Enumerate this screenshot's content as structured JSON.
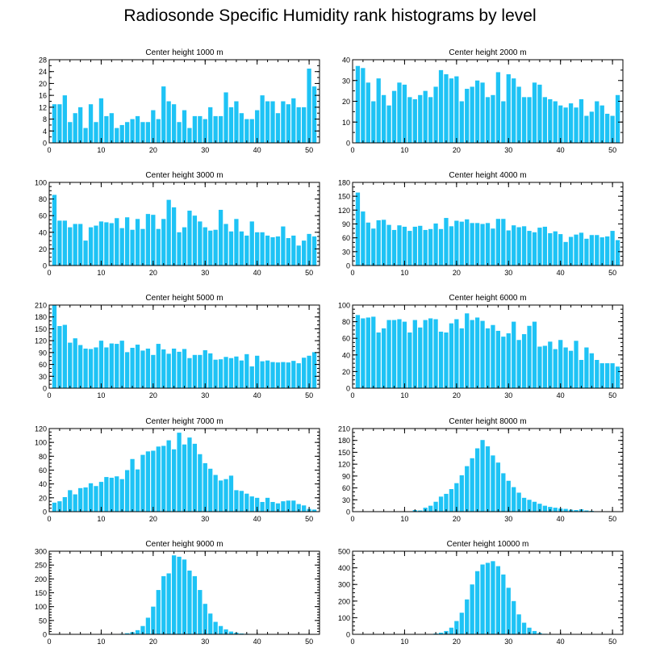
{
  "title": "Radiosonde Specific Humidity rank histograms by level",
  "colors": {
    "bar": "#1EC3F5",
    "axis": "#000000",
    "background": "#ffffff"
  },
  "chart_data": [
    {
      "type": "bar",
      "title": "Center height 1000 m",
      "x": [
        1,
        2,
        3,
        4,
        5,
        6,
        7,
        8,
        9,
        10,
        11,
        12,
        13,
        14,
        15,
        16,
        17,
        18,
        19,
        20,
        21,
        22,
        23,
        24,
        25,
        26,
        27,
        28,
        29,
        30,
        31,
        32,
        33,
        34,
        35,
        36,
        37,
        38,
        39,
        40,
        41,
        42,
        43,
        44,
        45,
        46,
        47,
        48,
        49,
        50,
        51
      ],
      "values": [
        13,
        13,
        16,
        7,
        10,
        12,
        5,
        13,
        7,
        15,
        9,
        10,
        5,
        6,
        7,
        8,
        9,
        7,
        7,
        11,
        8,
        19,
        14,
        13,
        7,
        11,
        5,
        9,
        9,
        8,
        12,
        9,
        9,
        17,
        12,
        14,
        10,
        8,
        8,
        11,
        16,
        14,
        14,
        10,
        14,
        13,
        15,
        12,
        12,
        25,
        19
      ],
      "xlim": [
        0,
        52
      ],
      "ylim": [
        0,
        28
      ],
      "xticks": [
        0,
        10,
        20,
        30,
        40,
        50
      ],
      "yticks": [
        0,
        4,
        8,
        12,
        16,
        20,
        24,
        28
      ],
      "yminor": 2
    },
    {
      "type": "bar",
      "title": "Center height 2000 m",
      "x": [
        1,
        2,
        3,
        4,
        5,
        6,
        7,
        8,
        9,
        10,
        11,
        12,
        13,
        14,
        15,
        16,
        17,
        18,
        19,
        20,
        21,
        22,
        23,
        24,
        25,
        26,
        27,
        28,
        29,
        30,
        31,
        32,
        33,
        34,
        35,
        36,
        37,
        38,
        39,
        40,
        41,
        42,
        43,
        44,
        45,
        46,
        47,
        48,
        49,
        50,
        51
      ],
      "values": [
        37,
        36,
        29,
        20,
        31,
        23,
        18,
        25,
        29,
        28,
        22,
        21,
        23,
        25,
        22,
        27,
        35,
        33,
        31,
        32,
        20,
        26,
        27,
        30,
        29,
        22,
        23,
        34,
        20,
        33,
        31,
        27,
        22,
        22,
        29,
        28,
        22,
        21,
        20,
        18,
        17,
        19,
        17,
        21,
        13,
        15,
        20,
        18,
        14,
        13,
        23
      ],
      "xlim": [
        0,
        52
      ],
      "ylim": [
        0,
        40
      ],
      "xticks": [
        0,
        10,
        20,
        30,
        40,
        50
      ],
      "yticks": [
        0,
        10,
        20,
        30,
        40
      ],
      "yminor": 2
    },
    {
      "type": "bar",
      "title": "Center height 3000 m",
      "x": [
        1,
        2,
        3,
        4,
        5,
        6,
        7,
        8,
        9,
        10,
        11,
        12,
        13,
        14,
        15,
        16,
        17,
        18,
        19,
        20,
        21,
        22,
        23,
        24,
        25,
        26,
        27,
        28,
        29,
        30,
        31,
        32,
        33,
        34,
        35,
        36,
        37,
        38,
        39,
        40,
        41,
        42,
        43,
        44,
        45,
        46,
        47,
        48,
        49,
        50,
        51
      ],
      "values": [
        85,
        54,
        54,
        46,
        50,
        50,
        30,
        46,
        48,
        53,
        52,
        51,
        57,
        45,
        58,
        43,
        56,
        44,
        62,
        61,
        44,
        56,
        79,
        70,
        40,
        46,
        66,
        60,
        53,
        46,
        42,
        43,
        67,
        50,
        41,
        56,
        41,
        36,
        53,
        40,
        40,
        36,
        34,
        35,
        47,
        33,
        36,
        24,
        30,
        38,
        35
      ],
      "xlim": [
        0,
        52
      ],
      "ylim": [
        0,
        100
      ],
      "xticks": [
        0,
        10,
        20,
        30,
        40,
        50
      ],
      "yticks": [
        0,
        20,
        40,
        60,
        80,
        100
      ],
      "yminor": 4
    },
    {
      "type": "bar",
      "title": "Center height 4000 m",
      "x": [
        1,
        2,
        3,
        4,
        5,
        6,
        7,
        8,
        9,
        10,
        11,
        12,
        13,
        14,
        15,
        16,
        17,
        18,
        19,
        20,
        21,
        22,
        23,
        24,
        25,
        26,
        27,
        28,
        29,
        30,
        31,
        32,
        33,
        34,
        35,
        36,
        37,
        38,
        39,
        40,
        41,
        42,
        43,
        44,
        45,
        46,
        47,
        48,
        49,
        50,
        51
      ],
      "values": [
        158,
        117,
        93,
        80,
        98,
        99,
        88,
        77,
        87,
        84,
        75,
        84,
        86,
        77,
        79,
        91,
        79,
        103,
        85,
        97,
        95,
        100,
        92,
        92,
        90,
        92,
        80,
        101,
        101,
        76,
        87,
        83,
        85,
        75,
        72,
        82,
        84,
        70,
        74,
        68,
        51,
        62,
        67,
        71,
        58,
        66,
        66,
        61,
        63,
        75,
        55
      ],
      "xlim": [
        0,
        52
      ],
      "ylim": [
        0,
        180
      ],
      "xticks": [
        0,
        10,
        20,
        30,
        40,
        50
      ],
      "yticks": [
        0,
        30,
        60,
        90,
        120,
        150,
        180
      ],
      "yminor": 3
    },
    {
      "type": "bar",
      "title": "Center height 5000 m",
      "x": [
        1,
        2,
        3,
        4,
        5,
        6,
        7,
        8,
        9,
        10,
        11,
        12,
        13,
        14,
        15,
        16,
        17,
        18,
        19,
        20,
        21,
        22,
        23,
        24,
        25,
        26,
        27,
        28,
        29,
        30,
        31,
        32,
        33,
        34,
        35,
        36,
        37,
        38,
        39,
        40,
        41,
        42,
        43,
        44,
        45,
        46,
        47,
        48,
        49,
        50,
        51
      ],
      "values": [
        210,
        157,
        160,
        115,
        126,
        109,
        100,
        99,
        103,
        120,
        103,
        113,
        112,
        120,
        91,
        102,
        110,
        95,
        100,
        84,
        112,
        98,
        87,
        100,
        92,
        99,
        76,
        84,
        84,
        96,
        88,
        72,
        73,
        79,
        76,
        80,
        70,
        86,
        55,
        82,
        68,
        70,
        66,
        65,
        66,
        65,
        69,
        63,
        77,
        82,
        91
      ],
      "xlim": [
        0,
        52
      ],
      "ylim": [
        0,
        210
      ],
      "xticks": [
        0,
        10,
        20,
        30,
        40,
        50
      ],
      "yticks": [
        0,
        30,
        60,
        90,
        120,
        150,
        180,
        210
      ],
      "yminor": 3
    },
    {
      "type": "bar",
      "title": "Center height 6000 m",
      "x": [
        1,
        2,
        3,
        4,
        5,
        6,
        7,
        8,
        9,
        10,
        11,
        12,
        13,
        14,
        15,
        16,
        17,
        18,
        19,
        20,
        21,
        22,
        23,
        24,
        25,
        26,
        27,
        28,
        29,
        30,
        31,
        32,
        33,
        34,
        35,
        36,
        37,
        38,
        39,
        40,
        41,
        42,
        43,
        44,
        45,
        46,
        47,
        48,
        49,
        50,
        51
      ],
      "values": [
        88,
        84,
        85,
        86,
        67,
        72,
        82,
        82,
        83,
        80,
        67,
        82,
        73,
        82,
        84,
        83,
        68,
        67,
        78,
        83,
        72,
        90,
        82,
        85,
        81,
        72,
        76,
        69,
        62,
        66,
        80,
        58,
        65,
        75,
        80,
        50,
        51,
        56,
        47,
        58,
        49,
        45,
        57,
        34,
        49,
        42,
        34,
        30,
        30,
        30,
        26
      ],
      "xlim": [
        0,
        52
      ],
      "ylim": [
        0,
        100
      ],
      "xticks": [
        0,
        10,
        20,
        30,
        40,
        50
      ],
      "yticks": [
        0,
        20,
        40,
        60,
        80,
        100
      ],
      "yminor": 4
    },
    {
      "type": "bar",
      "title": "Center height 7000 m",
      "x": [
        1,
        2,
        3,
        4,
        5,
        6,
        7,
        8,
        9,
        10,
        11,
        12,
        13,
        14,
        15,
        16,
        17,
        18,
        19,
        20,
        21,
        22,
        23,
        24,
        25,
        26,
        27,
        28,
        29,
        30,
        31,
        32,
        33,
        34,
        35,
        36,
        37,
        38,
        39,
        40,
        41,
        42,
        43,
        44,
        45,
        46,
        47,
        48,
        49,
        50,
        51
      ],
      "values": [
        13,
        15,
        21,
        31,
        25,
        34,
        35,
        41,
        37,
        43,
        50,
        49,
        51,
        47,
        60,
        76,
        61,
        82,
        87,
        88,
        94,
        95,
        103,
        90,
        114,
        97,
        107,
        98,
        83,
        70,
        62,
        53,
        45,
        47,
        52,
        31,
        30,
        26,
        22,
        20,
        14,
        20,
        14,
        12,
        15,
        16,
        16,
        11,
        9,
        4,
        3
      ],
      "xlim": [
        0,
        52
      ],
      "ylim": [
        0,
        120
      ],
      "xticks": [
        0,
        10,
        20,
        30,
        40,
        50
      ],
      "yticks": [
        0,
        20,
        40,
        60,
        80,
        100,
        120
      ],
      "yminor": 4
    },
    {
      "type": "bar",
      "title": "Center height 8000 m",
      "x": [
        1,
        2,
        3,
        4,
        5,
        6,
        7,
        8,
        9,
        10,
        11,
        12,
        13,
        14,
        15,
        16,
        17,
        18,
        19,
        20,
        21,
        22,
        23,
        24,
        25,
        26,
        27,
        28,
        29,
        30,
        31,
        32,
        33,
        34,
        35,
        36,
        37,
        38,
        39,
        40,
        41,
        42,
        43,
        44,
        45,
        46,
        47,
        48,
        49,
        50,
        51
      ],
      "values": [
        0,
        0,
        0,
        0,
        0,
        1,
        0,
        1,
        0,
        1,
        0,
        4,
        3,
        10,
        15,
        25,
        38,
        45,
        57,
        72,
        92,
        115,
        135,
        160,
        181,
        165,
        142,
        124,
        97,
        78,
        62,
        48,
        35,
        30,
        25,
        20,
        15,
        12,
        10,
        8,
        7,
        5,
        4,
        6,
        3,
        2,
        1,
        1,
        0,
        0,
        0
      ],
      "xlim": [
        0,
        52
      ],
      "ylim": [
        0,
        210
      ],
      "xticks": [
        0,
        10,
        20,
        30,
        40,
        50
      ],
      "yticks": [
        0,
        30,
        60,
        90,
        120,
        150,
        180,
        210
      ],
      "yminor": 3
    },
    {
      "type": "bar",
      "title": "Center height 9000 m",
      "x": [
        1,
        2,
        3,
        4,
        5,
        6,
        7,
        8,
        9,
        10,
        11,
        12,
        13,
        14,
        15,
        16,
        17,
        18,
        19,
        20,
        21,
        22,
        23,
        24,
        25,
        26,
        27,
        28,
        29,
        30,
        31,
        32,
        33,
        34,
        35,
        36,
        37,
        38,
        39,
        40,
        41,
        42,
        43,
        44,
        45,
        46,
        47,
        48,
        49,
        50,
        51
      ],
      "values": [
        0,
        0,
        0,
        0,
        0,
        0,
        0,
        0,
        0,
        0,
        0,
        0,
        0,
        2,
        4,
        8,
        15,
        30,
        60,
        100,
        160,
        210,
        220,
        285,
        280,
        270,
        230,
        210,
        160,
        110,
        75,
        45,
        30,
        18,
        10,
        6,
        3,
        2,
        1,
        1,
        0,
        0,
        0,
        0,
        0,
        0,
        0,
        0,
        0,
        0,
        0
      ],
      "xlim": [
        0,
        52
      ],
      "ylim": [
        0,
        300
      ],
      "xticks": [
        0,
        10,
        20,
        30,
        40,
        50
      ],
      "yticks": [
        0,
        50,
        100,
        150,
        200,
        250,
        300
      ],
      "yminor": 5
    },
    {
      "type": "bar",
      "title": "Center height 10000 m",
      "x": [
        1,
        2,
        3,
        4,
        5,
        6,
        7,
        8,
        9,
        10,
        11,
        12,
        13,
        14,
        15,
        16,
        17,
        18,
        19,
        20,
        21,
        22,
        23,
        24,
        25,
        26,
        27,
        28,
        29,
        30,
        31,
        32,
        33,
        34,
        35,
        36,
        37,
        38,
        39,
        40,
        41,
        42,
        43,
        44,
        45,
        46,
        47,
        48,
        49,
        50,
        51
      ],
      "values": [
        0,
        0,
        0,
        0,
        0,
        0,
        0,
        0,
        0,
        0,
        0,
        0,
        0,
        0,
        2,
        5,
        10,
        20,
        40,
        80,
        130,
        210,
        300,
        380,
        420,
        430,
        440,
        410,
        360,
        280,
        200,
        120,
        70,
        40,
        20,
        8,
        3,
        1,
        0,
        0,
        0,
        0,
        0,
        0,
        0,
        0,
        0,
        0,
        0,
        0,
        0
      ],
      "xlim": [
        0,
        52
      ],
      "ylim": [
        0,
        500
      ],
      "xticks": [
        0,
        10,
        20,
        30,
        40,
        50
      ],
      "yticks": [
        0,
        100,
        200,
        300,
        400,
        500
      ],
      "yminor": 4
    }
  ]
}
